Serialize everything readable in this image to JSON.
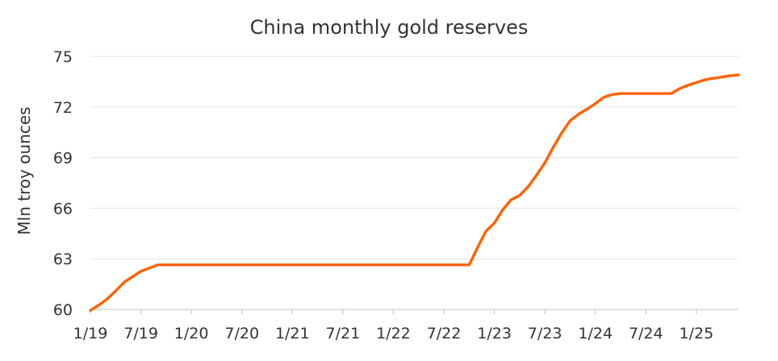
{
  "chart_data": {
    "type": "line",
    "title": "China monthly gold reserves",
    "ylabel": "Mln troy ounces",
    "xlabel": "",
    "ylim": [
      60,
      75
    ],
    "yticks": [
      60,
      63,
      66,
      69,
      72,
      75
    ],
    "xticks": [
      "1/19",
      "7/19",
      "1/20",
      "7/20",
      "1/21",
      "7/21",
      "1/22",
      "7/22",
      "1/23",
      "7/23",
      "1/24",
      "7/24",
      "1/25"
    ],
    "grid": "horizontal",
    "legend": "none",
    "color": "#ff6200",
    "series": [
      {
        "x": [
          "1/19",
          "2/19",
          "3/19",
          "4/19",
          "5/19",
          "6/19",
          "7/19",
          "8/19",
          "9/19",
          "10/19",
          "11/19",
          "12/19",
          "1/20",
          "2/20",
          "3/20",
          "4/20",
          "5/20",
          "6/20",
          "7/20",
          "8/20",
          "9/20",
          "10/20",
          "11/20",
          "12/20",
          "1/21",
          "2/21",
          "3/21",
          "4/21",
          "5/21",
          "6/21",
          "7/21",
          "8/21",
          "9/21",
          "10/21",
          "11/21",
          "12/21",
          "1/22",
          "2/22",
          "3/22",
          "4/22",
          "5/22",
          "6/22",
          "7/22",
          "8/22",
          "9/22",
          "10/22",
          "11/22",
          "12/22",
          "1/23",
          "2/23",
          "3/23",
          "4/23",
          "5/23",
          "6/23",
          "7/23",
          "8/23",
          "9/23",
          "10/23",
          "11/23",
          "12/23",
          "1/24",
          "2/24",
          "3/24",
          "4/24",
          "5/24",
          "6/24",
          "7/24",
          "8/24",
          "9/24",
          "10/24",
          "11/24",
          "12/24",
          "1/25",
          "2/25",
          "3/25",
          "4/25",
          "5/25",
          "6/25"
        ],
        "values": [
          59.94,
          60.26,
          60.62,
          61.1,
          61.61,
          61.94,
          62.26,
          62.45,
          62.64,
          62.64,
          62.64,
          62.64,
          62.64,
          62.64,
          62.64,
          62.64,
          62.64,
          62.64,
          62.64,
          62.64,
          62.64,
          62.64,
          62.64,
          62.64,
          62.64,
          62.64,
          62.64,
          62.64,
          62.64,
          62.64,
          62.64,
          62.64,
          62.64,
          62.64,
          62.64,
          62.64,
          62.64,
          62.64,
          62.64,
          62.64,
          62.64,
          62.64,
          62.64,
          62.64,
          62.64,
          62.64,
          63.67,
          64.64,
          65.12,
          65.92,
          66.5,
          66.76,
          67.27,
          67.95,
          68.69,
          69.62,
          70.46,
          71.19,
          71.58,
          71.87,
          72.2,
          72.58,
          72.74,
          72.8,
          72.8,
          72.8,
          72.8,
          72.8,
          72.8,
          72.8,
          73.09,
          73.29,
          73.45,
          73.61,
          73.7,
          73.77,
          73.86,
          73.9
        ]
      }
    ]
  }
}
